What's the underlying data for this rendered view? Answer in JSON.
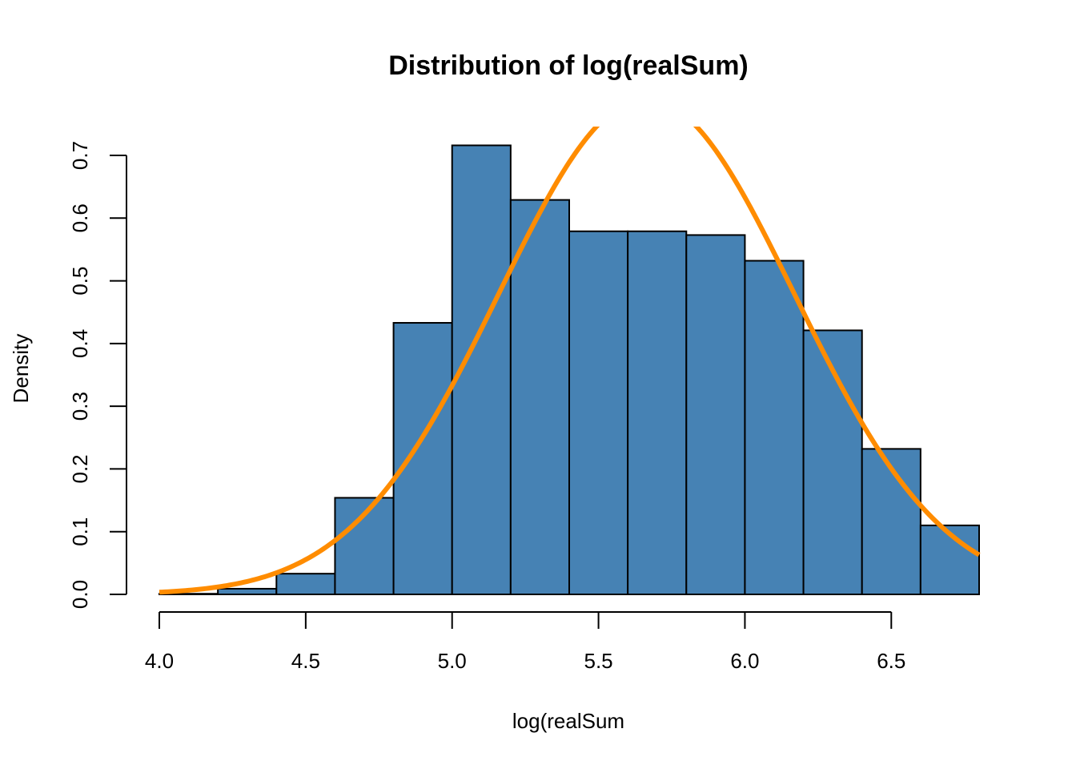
{
  "chart_data": {
    "type": "bar",
    "title": "Distribution of log(realSum)",
    "xlabel": "log(realSum",
    "ylabel": "Density",
    "x_ticks": [
      "4.0",
      "4.5",
      "5.0",
      "5.5",
      "6.0",
      "6.5"
    ],
    "y_ticks": [
      "0.0",
      "0.1",
      "0.2",
      "0.3",
      "0.4",
      "0.5",
      "0.6",
      "0.7"
    ],
    "xlim": [
      4.0,
      6.8
    ],
    "ylim": [
      0,
      0.7
    ],
    "bins": [
      {
        "start": 4.0,
        "end": 4.2,
        "density": 0.001
      },
      {
        "start": 4.2,
        "end": 4.4,
        "density": 0.009
      },
      {
        "start": 4.4,
        "end": 4.6,
        "density": 0.033
      },
      {
        "start": 4.6,
        "end": 4.8,
        "density": 0.154
      },
      {
        "start": 4.8,
        "end": 5.0,
        "density": 0.433
      },
      {
        "start": 5.0,
        "end": 5.2,
        "density": 0.716
      },
      {
        "start": 5.2,
        "end": 5.4,
        "density": 0.629
      },
      {
        "start": 5.4,
        "end": 5.6,
        "density": 0.579
      },
      {
        "start": 5.6,
        "end": 5.8,
        "density": 0.579
      },
      {
        "start": 5.8,
        "end": 6.0,
        "density": 0.573
      },
      {
        "start": 6.0,
        "end": 6.2,
        "density": 0.532
      },
      {
        "start": 6.2,
        "end": 6.4,
        "density": 0.421
      },
      {
        "start": 6.4,
        "end": 6.6,
        "density": 0.232
      },
      {
        "start": 6.6,
        "end": 6.8,
        "density": 0.11
      }
    ],
    "normal_curve": {
      "mean": 5.664,
      "sd": 0.505
    },
    "colors": {
      "bars": "#4682B4",
      "bar_border": "#000000",
      "curve": "#FF8C00"
    },
    "grid": false,
    "legend": "none"
  }
}
